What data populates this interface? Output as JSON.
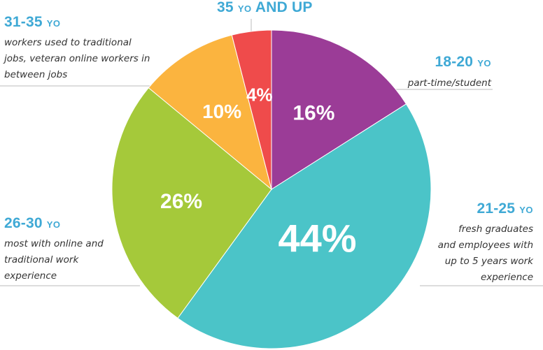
{
  "chart_data": {
    "type": "pie",
    "slices": [
      {
        "label": "16%",
        "value": 16,
        "color": "#9b3c97"
      },
      {
        "label": "44%",
        "value": 44,
        "color": "#4bc4c8"
      },
      {
        "label": "26%",
        "value": 26,
        "color": "#a5c93a"
      },
      {
        "label": "10%",
        "value": 10,
        "color": "#fbb43f"
      },
      {
        "label": "4%",
        "value": 4,
        "color": "#ef4b4b"
      }
    ]
  },
  "groups": {
    "g35up": {
      "age": "35",
      "yo": "YO",
      "suffix": "AND UP"
    },
    "g1820": {
      "age": "18-20",
      "yo": "YO",
      "desc": [
        "part-time/student"
      ]
    },
    "g2125": {
      "age": "21-25",
      "yo": "YO",
      "desc": [
        "fresh graduates",
        "and employees with",
        "up to 5 years work",
        "experience"
      ]
    },
    "g2630": {
      "age": "26-30",
      "yo": "YO",
      "desc": [
        "most with online and",
        "traditional work",
        "experience"
      ]
    },
    "g3135": {
      "age": "31-35",
      "yo": "YO",
      "desc": [
        "workers used to traditional",
        "jobs, veteran online workers in",
        "between jobs"
      ]
    }
  },
  "colors": {
    "heading": "#3fa9d5",
    "leader": "#bbbbbb"
  }
}
